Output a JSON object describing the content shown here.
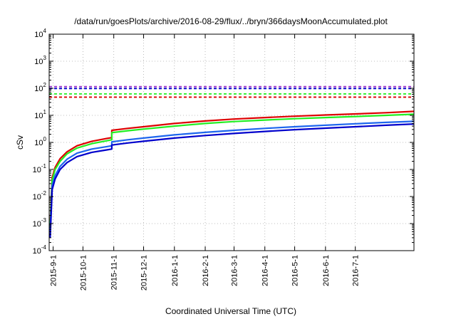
{
  "chart_data": {
    "type": "line",
    "title": "/data/run/goesPlots/archive/2016-08-29/flux/../bryn/366daysMoonAccumulated.plot",
    "xlabel": "Coordinated Universal Time (UTC)",
    "ylabel": "cSv",
    "yscale": "log",
    "ylim": [
      0.0001,
      10000
    ],
    "xlim": [
      "2015-08-28",
      "2016-08-29"
    ],
    "grid": true,
    "legend": "none",
    "x_ticks": [
      "2015-9-1",
      "2015-10-1",
      "2015-11-1",
      "2015-12-1",
      "2016-1-1",
      "2016-2-1",
      "2016-3-1",
      "2016-4-1",
      "2016-5-1",
      "2016-6-1",
      "2016-7-1"
    ],
    "y_ticks": [
      {
        "base": "10",
        "exp": "-4",
        "value": 0.0001
      },
      {
        "base": "10",
        "exp": "-3",
        "value": 0.001
      },
      {
        "base": "10",
        "exp": "-2",
        "value": 0.01
      },
      {
        "base": "10",
        "exp": "-1",
        "value": 0.1
      },
      {
        "base": "10",
        "exp": "0",
        "value": 1
      },
      {
        "base": "10",
        "exp": "1",
        "value": 10
      },
      {
        "base": "10",
        "exp": "2",
        "value": 100
      },
      {
        "base": "10",
        "exp": "3",
        "value": 1000
      },
      {
        "base": "10",
        "exp": "4",
        "value": 10000
      }
    ],
    "series": [
      {
        "color": "#dd0000",
        "x": [
          "2015-08-29",
          "2015-08-31",
          "2015-09-03",
          "2015-09-08",
          "2015-09-15",
          "2015-09-25",
          "2015-10-10",
          "2015-10-25",
          "2015-10-30",
          "2015-10-30",
          "2015-11-15",
          "2015-12-01",
          "2016-01-01",
          "2016-02-01",
          "2016-03-01",
          "2016-04-01",
          "2016-05-01",
          "2016-06-01",
          "2016-07-01",
          "2016-08-01",
          "2016-08-29"
        ],
        "y": [
          0.001,
          0.05,
          0.12,
          0.25,
          0.45,
          0.75,
          1.1,
          1.4,
          1.5,
          2.8,
          3.3,
          3.8,
          5.0,
          6.2,
          7.3,
          8.3,
          9.3,
          10.3,
          11.3,
          12.5,
          14
        ]
      },
      {
        "color": "#22ee22",
        "x": [
          "2015-08-29",
          "2015-08-31",
          "2015-09-03",
          "2015-09-08",
          "2015-09-15",
          "2015-09-25",
          "2015-10-10",
          "2015-10-25",
          "2015-10-30",
          "2015-10-30",
          "2015-11-15",
          "2015-12-01",
          "2016-01-01",
          "2016-02-01",
          "2016-03-01",
          "2016-04-01",
          "2016-05-01",
          "2016-06-01",
          "2016-07-01",
          "2016-08-01",
          "2016-08-29"
        ],
        "y": [
          0.0008,
          0.04,
          0.1,
          0.2,
          0.38,
          0.62,
          0.9,
          1.15,
          1.25,
          2.3,
          2.7,
          3.1,
          4.0,
          5.0,
          5.9,
          6.7,
          7.5,
          8.3,
          9.1,
          10.0,
          11
        ]
      },
      {
        "color": "#1e66ee",
        "x": [
          "2015-08-29",
          "2015-08-31",
          "2015-09-03",
          "2015-09-08",
          "2015-09-15",
          "2015-09-25",
          "2015-10-10",
          "2015-10-25",
          "2015-10-30",
          "2015-10-30",
          "2015-11-15",
          "2015-12-01",
          "2016-01-01",
          "2016-02-01",
          "2016-03-01",
          "2016-04-01",
          "2016-05-01",
          "2016-06-01",
          "2016-07-01",
          "2016-08-01",
          "2016-08-29"
        ],
        "y": [
          0.0005,
          0.025,
          0.06,
          0.13,
          0.24,
          0.4,
          0.57,
          0.7,
          0.75,
          1.05,
          1.25,
          1.45,
          1.9,
          2.35,
          2.8,
          3.3,
          3.8,
          4.3,
          4.9,
          5.5,
          6
        ]
      },
      {
        "color": "#0000cc",
        "x": [
          "2015-08-29",
          "2015-08-31",
          "2015-09-03",
          "2015-09-08",
          "2015-09-15",
          "2015-09-25",
          "2015-10-10",
          "2015-10-25",
          "2015-10-30",
          "2015-10-30",
          "2015-11-15",
          "2015-12-01",
          "2016-01-01",
          "2016-02-01",
          "2016-03-01",
          "2016-04-01",
          "2016-05-01",
          "2016-06-01",
          "2016-07-01",
          "2016-08-01",
          "2016-08-29"
        ],
        "y": [
          0.0003,
          0.018,
          0.045,
          0.1,
          0.18,
          0.3,
          0.43,
          0.53,
          0.57,
          0.8,
          0.95,
          1.1,
          1.45,
          1.8,
          2.15,
          2.55,
          2.95,
          3.35,
          3.8,
          4.3,
          4.8
        ]
      }
    ],
    "threshold_lines": [
      {
        "color": "#9933cc",
        "style": "dashed",
        "value": 115
      },
      {
        "color": "#0000cc",
        "style": "dashed",
        "value": 98
      },
      {
        "color": "#22ee22",
        "style": "dashed",
        "value": 62
      },
      {
        "color": "#dd0000",
        "style": "dashed",
        "value": 47
      }
    ]
  }
}
